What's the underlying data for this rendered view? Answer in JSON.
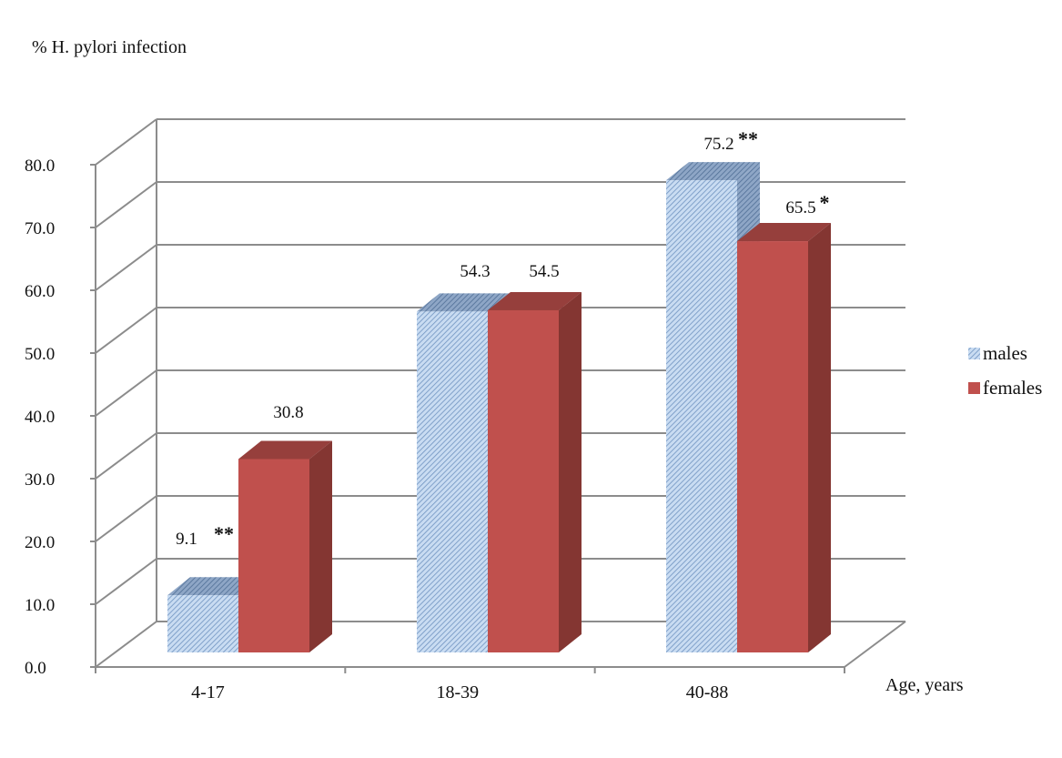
{
  "chart_data": {
    "type": "bar",
    "subtype": "3d-clustered-column",
    "ylabel": "% H. pylori infection",
    "xlabel": "Age, years",
    "categories": [
      "4-17",
      "18-39",
      "40-88"
    ],
    "ylim": [
      0,
      80
    ],
    "yticks": [
      "0.0",
      "10.0",
      "20.0",
      "30.0",
      "40.0",
      "50.0",
      "60.0",
      "70.0",
      "80.0"
    ],
    "grid": true,
    "legend_position": "right",
    "series": [
      {
        "name": "males",
        "values": [
          9.1,
          54.3,
          75.2
        ],
        "labels": [
          "9.1",
          "54.3",
          "75.2"
        ],
        "significance": [
          "**",
          "",
          "**"
        ],
        "color": "#b9d1ee",
        "pattern": "diagonal-hatch"
      },
      {
        "name": "females",
        "values": [
          30.8,
          54.5,
          65.5
        ],
        "labels": [
          "30.8",
          "54.5",
          "65.5"
        ],
        "significance": [
          "",
          "",
          "*"
        ],
        "color": "#c0504d"
      }
    ]
  }
}
